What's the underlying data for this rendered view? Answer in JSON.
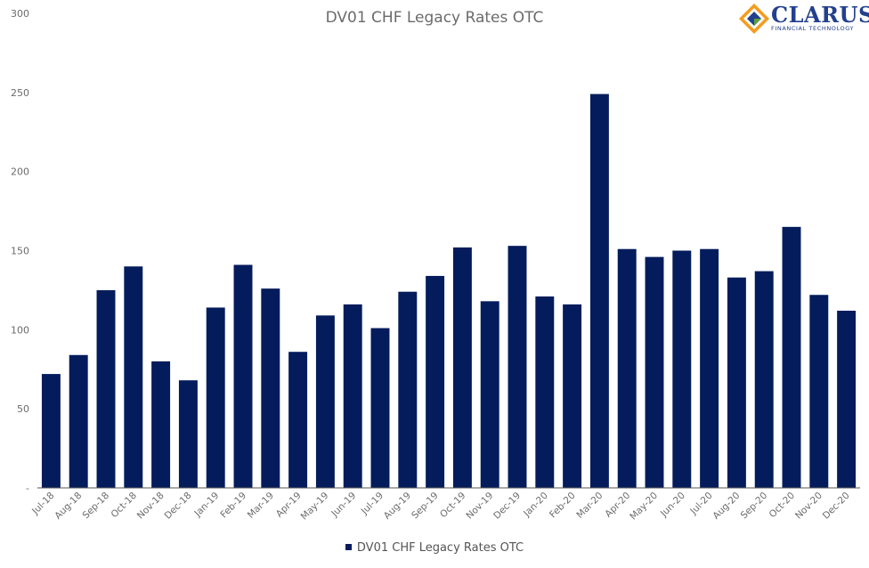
{
  "colors": {
    "bar": "#041c5c",
    "axis": "#555555",
    "text": "#6b6b6b",
    "logo_blue": "#23408e",
    "logo_orange": "#f39c1f",
    "logo_green": "#57a33a"
  },
  "logo": {
    "name": "CLARUS",
    "tagline": "FINANCIAL TECHNOLOGY",
    "icon": "clarus-diamond-logo"
  },
  "chart_data": {
    "type": "bar",
    "title": "DV01 CHF Legacy Rates OTC",
    "xlabel": "",
    "ylabel": "",
    "ylim": [
      0,
      300
    ],
    "yticks": [
      0,
      50,
      100,
      150,
      200,
      250,
      300
    ],
    "ytick_labels": [
      "-",
      "50",
      "100",
      "150",
      "200",
      "250",
      "300"
    ],
    "grid": false,
    "legend_position": "bottom",
    "categories": [
      "Jul-18",
      "Aug-18",
      "Sep-18",
      "Oct-18",
      "Nov-18",
      "Dec-18",
      "Jan-19",
      "Feb-19",
      "Mar-19",
      "Apr-19",
      "May-19",
      "Jun-19",
      "Jul-19",
      "Aug-19",
      "Sep-19",
      "Oct-19",
      "Nov-19",
      "Dec-19",
      "Jan-20",
      "Feb-20",
      "Mar-20",
      "Apr-20",
      "May-20",
      "Jun-20",
      "Jul-20",
      "Aug-20",
      "Sep-20",
      "Oct-20",
      "Nov-20",
      "Dec-20"
    ],
    "series": [
      {
        "name": "DV01 CHF Legacy Rates OTC",
        "values": [
          72,
          84,
          125,
          140,
          80,
          68,
          114,
          141,
          126,
          86,
          109,
          116,
          101,
          124,
          134,
          152,
          118,
          153,
          121,
          116,
          249,
          151,
          146,
          150,
          151,
          133,
          137,
          165,
          122,
          112
        ]
      }
    ]
  }
}
